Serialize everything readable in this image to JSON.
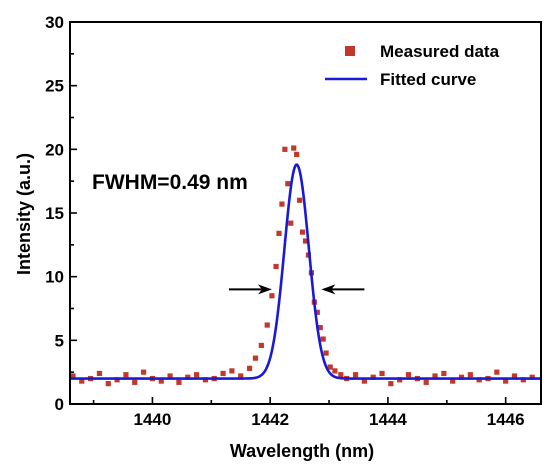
{
  "chart_data": {
    "type": "scatter",
    "title": "",
    "xlabel": "Wavelength (nm)",
    "ylabel": "Intensity (a.u.)",
    "xlim": [
      1438.6,
      1446.6
    ],
    "ylim": [
      0,
      30
    ],
    "xticks": [
      1440,
      1442,
      1444,
      1446
    ],
    "yticks": [
      0,
      5,
      10,
      15,
      20,
      25,
      30
    ],
    "grid": false,
    "legend_position": "top-right",
    "annotation": "FWHM=0.49 nm",
    "series": [
      {
        "name": "Measured data",
        "kind": "scatter",
        "marker": "square",
        "color": "#c0392b",
        "x": [
          1438.65,
          1438.8,
          1438.95,
          1439.1,
          1439.25,
          1439.4,
          1439.55,
          1439.7,
          1439.85,
          1440.0,
          1440.15,
          1440.3,
          1440.45,
          1440.6,
          1440.75,
          1440.9,
          1441.05,
          1441.2,
          1441.35,
          1441.5,
          1441.65,
          1441.75,
          1441.85,
          1441.95,
          1442.03,
          1442.1,
          1442.15,
          1442.2,
          1442.25,
          1442.3,
          1442.35,
          1442.4,
          1442.45,
          1442.5,
          1442.55,
          1442.6,
          1442.65,
          1442.7,
          1442.75,
          1442.8,
          1442.85,
          1442.9,
          1442.95,
          1443.02,
          1443.1,
          1443.2,
          1443.3,
          1443.45,
          1443.6,
          1443.75,
          1443.9,
          1444.05,
          1444.2,
          1444.35,
          1444.5,
          1444.65,
          1444.8,
          1444.95,
          1445.1,
          1445.25,
          1445.4,
          1445.55,
          1445.7,
          1445.85,
          1446.0,
          1446.15,
          1446.3,
          1446.45
        ],
        "y": [
          2.2,
          1.8,
          2.0,
          2.4,
          1.6,
          1.9,
          2.3,
          1.7,
          2.5,
          2.0,
          1.8,
          2.2,
          1.7,
          2.1,
          2.3,
          1.9,
          2.0,
          2.4,
          2.6,
          2.2,
          2.8,
          3.6,
          4.6,
          6.2,
          8.5,
          10.8,
          13.4,
          15.7,
          20.0,
          17.3,
          14.2,
          20.1,
          19.6,
          16.0,
          13.5,
          12.8,
          11.7,
          10.3,
          8.0,
          7.2,
          6.0,
          5.1,
          4.0,
          2.9,
          2.6,
          2.3,
          2.0,
          2.3,
          1.8,
          2.1,
          2.4,
          1.6,
          1.9,
          2.3,
          2.0,
          1.7,
          2.2,
          2.4,
          1.8,
          2.1,
          2.3,
          1.9,
          2.0,
          2.5,
          1.8,
          2.2,
          1.9,
          2.1
        ]
      },
      {
        "name": "Fitted curve",
        "kind": "line",
        "color": "#1a1ad6",
        "model": "gaussian",
        "baseline": 2.0,
        "amplitude": 16.8,
        "center": 1442.45,
        "fwhm": 0.49
      }
    ],
    "fwhm_arrows": {
      "y": 9.0,
      "left_x": [
        1441.3,
        1442.03
      ],
      "right_x": [
        1442.87,
        1443.6
      ]
    }
  }
}
